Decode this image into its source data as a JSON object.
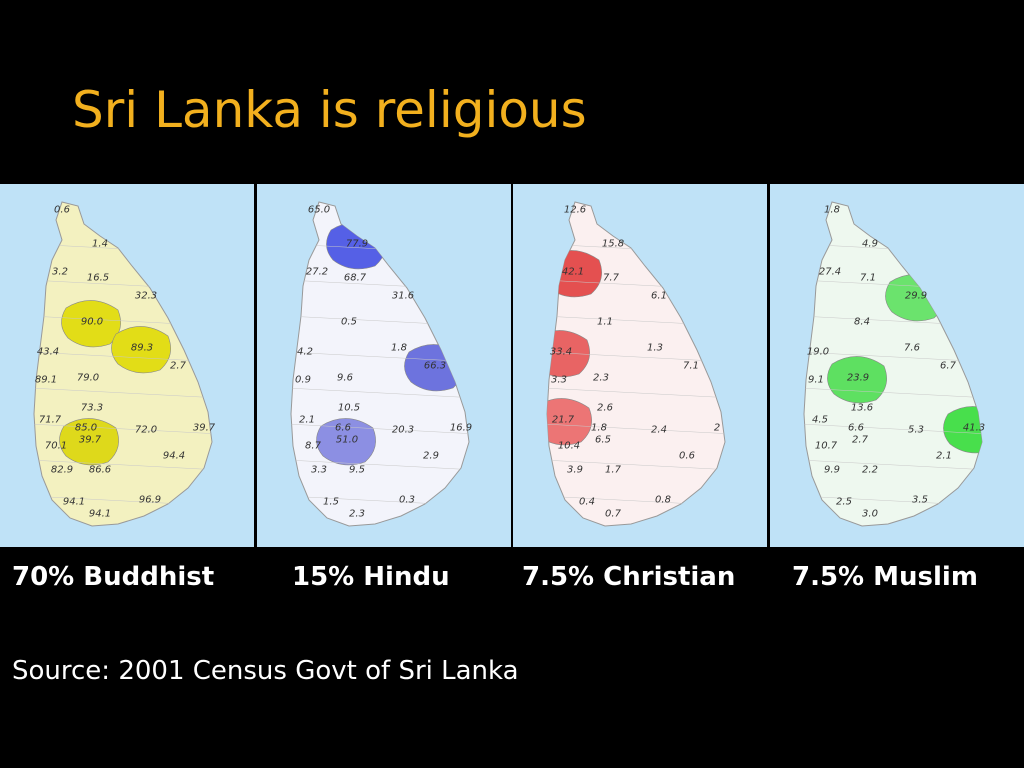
{
  "title": "Sri Lanka is religious",
  "source": "Source: 2001 Census Govt of Sri Lanka",
  "maps": [
    {
      "caption": "70% Buddhist",
      "base_color": "#f3f1c0",
      "labels": [
        "0.6",
        "1.4",
        "3.2",
        "16.5",
        "32.3",
        "90.0",
        "43.4",
        "89.3",
        "2.7",
        "89.1",
        "79.0",
        "73.3",
        "71.7",
        "85.0",
        "72.0",
        "39.7",
        "70.1",
        "39.7",
        "94.4",
        "82.9",
        "86.6",
        "94.1",
        "96.9",
        "94.1"
      ],
      "highlights": [
        {
          "label_index": 5,
          "color": "#e2dd17"
        },
        {
          "label_index": 7,
          "color": "#e2dd17"
        },
        {
          "label_index": 17,
          "color": "#ded91b"
        }
      ]
    },
    {
      "caption": "15% Hindu",
      "base_color": "#f3f4fb",
      "labels": [
        "65.0",
        "77.9",
        "27.2",
        "68.7",
        "31.6",
        "0.5",
        "4.2",
        "1.8",
        "66.3",
        "0.9",
        "9.6",
        "10.5",
        "2.1",
        "6.6",
        "20.3",
        "16.9",
        "8.7",
        "51.0",
        "2.9",
        "3.3",
        "9.5",
        "1.5",
        "0.3",
        "2.3"
      ],
      "highlights": [
        {
          "label_index": 1,
          "color": "#5560e6"
        },
        {
          "label_index": 8,
          "color": "#6d73de"
        },
        {
          "label_index": 17,
          "color": "#8c8fe3"
        }
      ]
    },
    {
      "caption": "7.5% Christian",
      "base_color": "#fbf0f0",
      "labels": [
        "12.6",
        "15.8",
        "42.1",
        "7.7",
        "6.1",
        "1.1",
        "33.4",
        "1.3",
        "7.1",
        "3.3",
        "2.3",
        "2.6",
        "21.7",
        "1.8",
        "2.4",
        "2",
        "10.4",
        "6.5",
        "0.6",
        "3.9",
        "1.7",
        "0.4",
        "0.8",
        "0.7"
      ],
      "highlights": [
        {
          "label_index": 2,
          "color": "#e45050"
        },
        {
          "label_index": 6,
          "color": "#e86464"
        },
        {
          "label_index": 12,
          "color": "#ec7575"
        }
      ]
    },
    {
      "caption": "7.5% Muslim",
      "base_color": "#eef8ef",
      "labels": [
        "1.8",
        "4.9",
        "27.4",
        "7.1",
        "29.9",
        "8.4",
        "19.0",
        "7.6",
        "6.7",
        "9.1",
        "23.9",
        "13.6",
        "4.5",
        "6.6",
        "5.3",
        "41.3",
        "10.7",
        "2.7",
        "2.1",
        "9.9",
        "2.2",
        "2.5",
        "3.5",
        "3.0"
      ],
      "highlights": [
        {
          "label_index": 15,
          "color": "#48df4c"
        },
        {
          "label_index": 4,
          "color": "#6be36d"
        },
        {
          "label_index": 10,
          "color": "#5ee061"
        }
      ]
    }
  ]
}
